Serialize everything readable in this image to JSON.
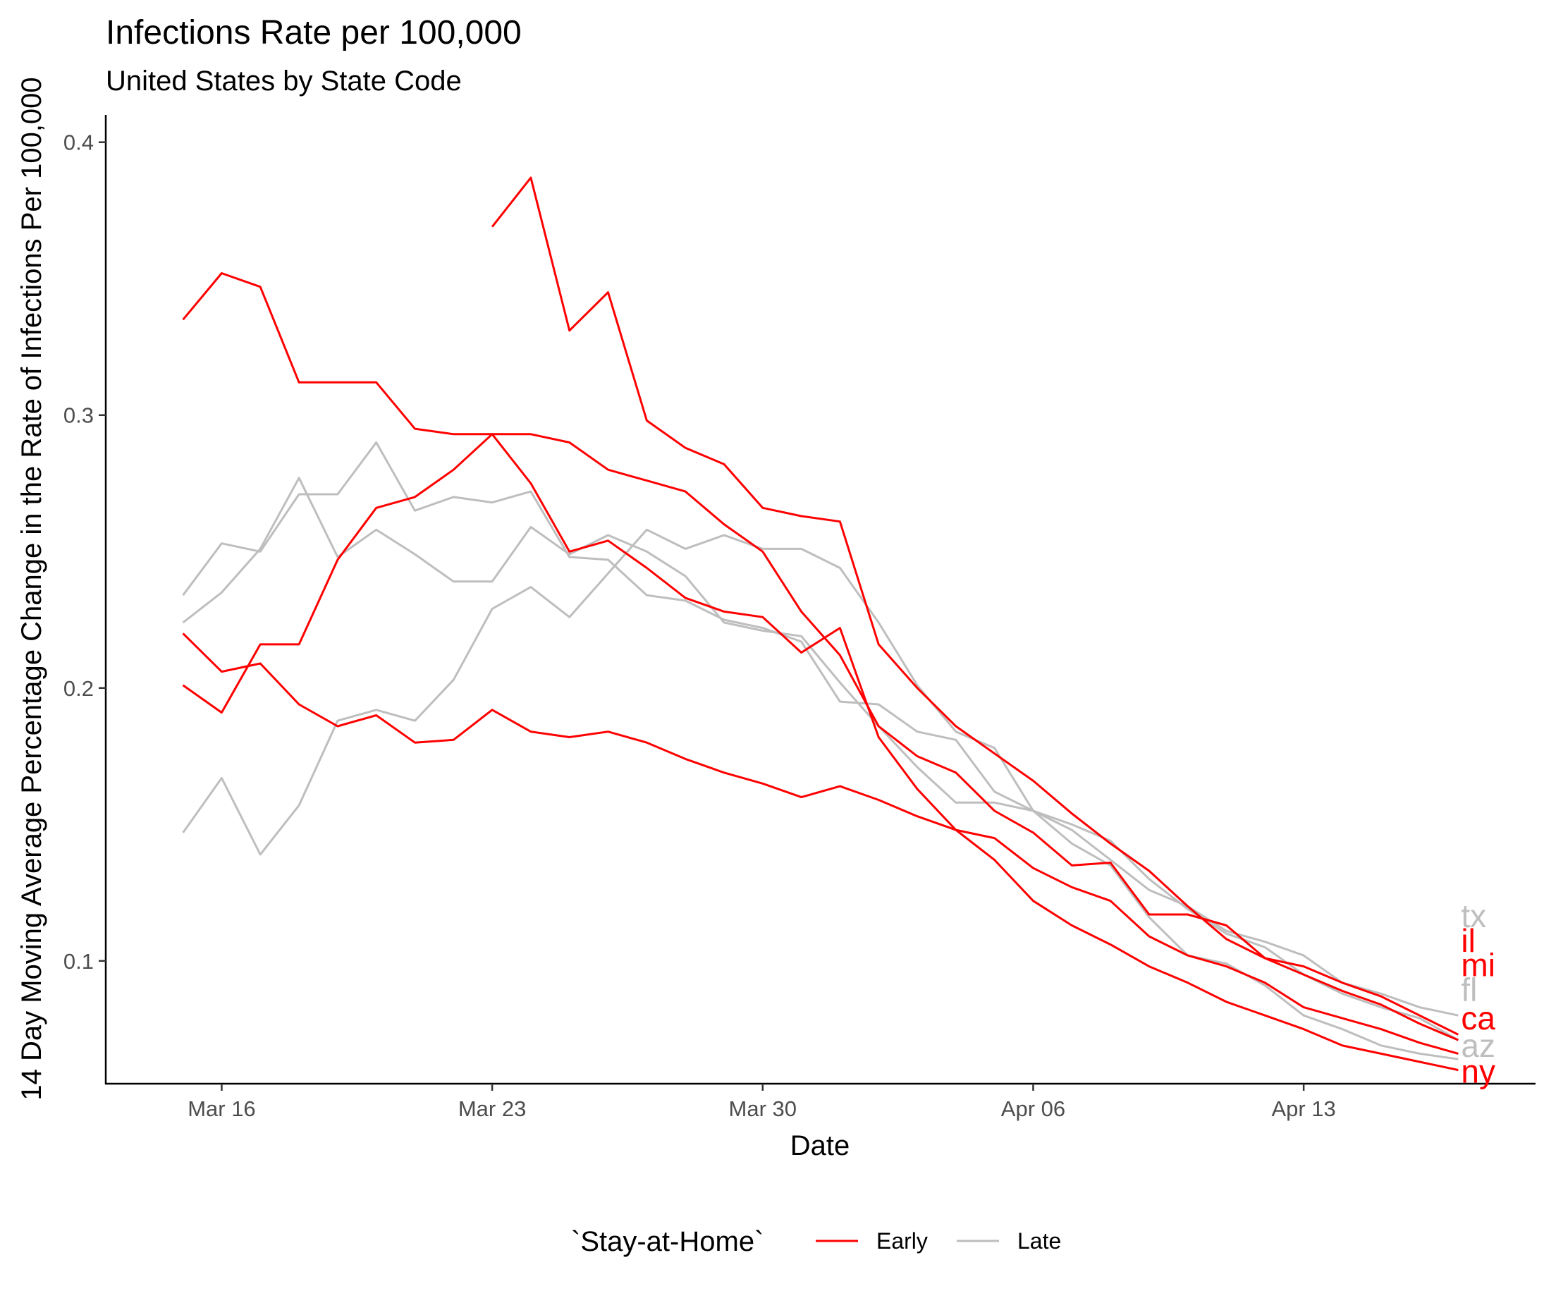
{
  "chart_data": {
    "type": "line",
    "title": "Infections Rate per 100,000",
    "subtitle": "United States by State Code",
    "xlabel": "Date",
    "ylabel": "14 Day Moving Average Percentage Change in the Rate of Infections Per 100,000",
    "xlim": [
      "2020-03-13",
      "2020-04-19"
    ],
    "ylim": [
      0.055,
      0.41
    ],
    "x_ticks": [
      {
        "value": "2020-03-16",
        "label": "Mar 16"
      },
      {
        "value": "2020-03-23",
        "label": "Mar 23"
      },
      {
        "value": "2020-03-30",
        "label": "Mar 30"
      },
      {
        "value": "2020-04-06",
        "label": "Apr 06"
      },
      {
        "value": "2020-04-13",
        "label": "Apr 13"
      }
    ],
    "y_ticks": [
      {
        "value": 0.1,
        "label": "0.1"
      },
      {
        "value": 0.2,
        "label": "0.2"
      },
      {
        "value": 0.3,
        "label": "0.3"
      },
      {
        "value": 0.4,
        "label": "0.4"
      }
    ],
    "grid": false,
    "legend": {
      "title": "`Stay-at-Home`",
      "position": "bottom",
      "entries": [
        {
          "label": "Early",
          "color": "#ff0000"
        },
        {
          "label": "Late",
          "color": "#bebebe"
        }
      ]
    },
    "colors": {
      "Early": "#ff0000",
      "Late": "#bebebe"
    },
    "end_labels": [
      {
        "text": "tx",
        "group": "Late",
        "y": 0.1165
      },
      {
        "text": "il",
        "group": "Early",
        "y": 0.1075
      },
      {
        "text": "mi",
        "group": "Early",
        "y": 0.0985
      },
      {
        "text": "fl",
        "group": "Late",
        "y": 0.0895
      },
      {
        "text": "ca",
        "group": "Early",
        "y": 0.079
      },
      {
        "text": "az",
        "group": "Late",
        "y": 0.069
      },
      {
        "text": "ny",
        "group": "Early",
        "y": 0.0595
      }
    ],
    "series": [
      {
        "group": "Early",
        "x": [
          "2020-03-23",
          "2020-03-24",
          "2020-03-25",
          "2020-03-26",
          "2020-03-27",
          "2020-03-28",
          "2020-03-29",
          "2020-03-30",
          "2020-03-31",
          "2020-04-01",
          "2020-04-02",
          "2020-04-03",
          "2020-04-04",
          "2020-04-05",
          "2020-04-06",
          "2020-04-07",
          "2020-04-08",
          "2020-04-09",
          "2020-04-10",
          "2020-04-11",
          "2020-04-12",
          "2020-04-13",
          "2020-04-14",
          "2020-04-15",
          "2020-04-16",
          "2020-04-17"
        ],
        "y": [
          0.369,
          0.387,
          0.331,
          0.345,
          0.298,
          0.288,
          0.282,
          0.266,
          0.263,
          0.261,
          0.216,
          0.2,
          0.186,
          0.176,
          0.166,
          0.154,
          0.143,
          0.133,
          0.12,
          0.108,
          0.101,
          0.098,
          0.092,
          0.087,
          0.08,
          0.073
        ]
      },
      {
        "group": "Early",
        "x": [
          "2020-03-15",
          "2020-03-16",
          "2020-03-17",
          "2020-03-18",
          "2020-03-19",
          "2020-03-20",
          "2020-03-21",
          "2020-03-22",
          "2020-03-23",
          "2020-03-24",
          "2020-03-25",
          "2020-03-26",
          "2020-03-27",
          "2020-03-28",
          "2020-03-29",
          "2020-03-30",
          "2020-03-31",
          "2020-04-01",
          "2020-04-02",
          "2020-04-03",
          "2020-04-04",
          "2020-04-05",
          "2020-04-06",
          "2020-04-07",
          "2020-04-08",
          "2020-04-09",
          "2020-04-10",
          "2020-04-11",
          "2020-04-12",
          "2020-04-13",
          "2020-04-14",
          "2020-04-15",
          "2020-04-16",
          "2020-04-17"
        ],
        "y": [
          0.335,
          0.352,
          0.347,
          0.312,
          0.312,
          0.312,
          0.295,
          0.293,
          0.293,
          0.293,
          0.29,
          0.28,
          0.276,
          0.272,
          0.26,
          0.25,
          0.228,
          0.212,
          0.186,
          0.175,
          0.169,
          0.155,
          0.147,
          0.135,
          0.136,
          0.117,
          0.117,
          0.113,
          0.101,
          0.095,
          0.089,
          0.084,
          0.077,
          0.071
        ]
      },
      {
        "group": "Early",
        "x": [
          "2020-03-15",
          "2020-03-16",
          "2020-03-17",
          "2020-03-18",
          "2020-03-19",
          "2020-03-20",
          "2020-03-21",
          "2020-03-22",
          "2020-03-23",
          "2020-03-24",
          "2020-03-25",
          "2020-03-26",
          "2020-03-27",
          "2020-03-28",
          "2020-03-29",
          "2020-03-30",
          "2020-03-31",
          "2020-04-01",
          "2020-04-02",
          "2020-04-03",
          "2020-04-04",
          "2020-04-05",
          "2020-04-06",
          "2020-04-07",
          "2020-04-08",
          "2020-04-09",
          "2020-04-10",
          "2020-04-11",
          "2020-04-12",
          "2020-04-13",
          "2020-04-14",
          "2020-04-15",
          "2020-04-16",
          "2020-04-17"
        ],
        "y": [
          0.201,
          0.191,
          0.216,
          0.216,
          0.247,
          0.266,
          0.27,
          0.28,
          0.293,
          0.275,
          0.25,
          0.254,
          0.244,
          0.233,
          0.228,
          0.226,
          0.213,
          0.222,
          0.182,
          0.163,
          0.148,
          0.137,
          0.122,
          0.113,
          0.106,
          0.098,
          0.092,
          0.085,
          0.08,
          0.075,
          0.069,
          0.066,
          0.063,
          0.06
        ]
      },
      {
        "group": "Early",
        "x": [
          "2020-03-15",
          "2020-03-16",
          "2020-03-17",
          "2020-03-18",
          "2020-03-19",
          "2020-03-20",
          "2020-03-21",
          "2020-03-22",
          "2020-03-23",
          "2020-03-24",
          "2020-03-25",
          "2020-03-26",
          "2020-03-27",
          "2020-03-28",
          "2020-03-29",
          "2020-03-30",
          "2020-03-31",
          "2020-04-01",
          "2020-04-02",
          "2020-04-03",
          "2020-04-04",
          "2020-04-05",
          "2020-04-06",
          "2020-04-07",
          "2020-04-08",
          "2020-04-09",
          "2020-04-10",
          "2020-04-11",
          "2020-04-12",
          "2020-04-13",
          "2020-04-14",
          "2020-04-15",
          "2020-04-16",
          "2020-04-17"
        ],
        "y": [
          0.22,
          0.206,
          0.209,
          0.194,
          0.186,
          0.19,
          0.18,
          0.181,
          0.192,
          0.184,
          0.182,
          0.184,
          0.18,
          0.174,
          0.169,
          0.165,
          0.16,
          0.164,
          0.159,
          0.153,
          0.148,
          0.145,
          0.134,
          0.127,
          0.122,
          0.109,
          0.102,
          0.098,
          0.092,
          0.083,
          0.079,
          0.075,
          0.07,
          0.066
        ]
      },
      {
        "group": "Late",
        "x": [
          "2020-03-15",
          "2020-03-16",
          "2020-03-17",
          "2020-03-18",
          "2020-03-19",
          "2020-03-20",
          "2020-03-21",
          "2020-03-22",
          "2020-03-23",
          "2020-03-24",
          "2020-03-25",
          "2020-03-26",
          "2020-03-27",
          "2020-03-28",
          "2020-03-29",
          "2020-03-30",
          "2020-03-31",
          "2020-04-01",
          "2020-04-02",
          "2020-04-03",
          "2020-04-04",
          "2020-04-05",
          "2020-04-06",
          "2020-04-07",
          "2020-04-08",
          "2020-04-09",
          "2020-04-10",
          "2020-04-11",
          "2020-04-12",
          "2020-04-13",
          "2020-04-14",
          "2020-04-15",
          "2020-04-16",
          "2020-04-17"
        ],
        "y": [
          0.234,
          0.253,
          0.25,
          0.271,
          0.271,
          0.29,
          0.265,
          0.27,
          0.268,
          0.272,
          0.248,
          0.247,
          0.234,
          0.232,
          0.225,
          0.222,
          0.217,
          0.195,
          0.194,
          0.184,
          0.181,
          0.162,
          0.155,
          0.148,
          0.137,
          0.126,
          0.12,
          0.111,
          0.107,
          0.102,
          0.092,
          0.088,
          0.083,
          0.08
        ]
      },
      {
        "group": "Late",
        "x": [
          "2020-03-15",
          "2020-03-16",
          "2020-03-17",
          "2020-03-18",
          "2020-03-19",
          "2020-03-20",
          "2020-03-21",
          "2020-03-22",
          "2020-03-23",
          "2020-03-24",
          "2020-03-25",
          "2020-03-26",
          "2020-03-27",
          "2020-03-28",
          "2020-03-29",
          "2020-03-30",
          "2020-03-31",
          "2020-04-01",
          "2020-04-02",
          "2020-04-03",
          "2020-04-04",
          "2020-04-05",
          "2020-04-06",
          "2020-04-07",
          "2020-04-08",
          "2020-04-09",
          "2020-04-10",
          "2020-04-11",
          "2020-04-12",
          "2020-04-13",
          "2020-04-14",
          "2020-04-15",
          "2020-04-16",
          "2020-04-17"
        ],
        "y": [
          0.224,
          0.235,
          0.251,
          0.277,
          0.248,
          0.258,
          0.249,
          0.239,
          0.239,
          0.259,
          0.249,
          0.256,
          0.25,
          0.241,
          0.224,
          0.221,
          0.219,
          0.202,
          0.186,
          0.171,
          0.158,
          0.158,
          0.155,
          0.15,
          0.144,
          0.13,
          0.119,
          0.11,
          0.105,
          0.095,
          0.088,
          0.083,
          0.079,
          0.071
        ]
      },
      {
        "group": "Late",
        "x": [
          "2020-03-15",
          "2020-03-16",
          "2020-03-17",
          "2020-03-18",
          "2020-03-19",
          "2020-03-20",
          "2020-03-21",
          "2020-03-22",
          "2020-03-23",
          "2020-03-24",
          "2020-03-25",
          "2020-03-26",
          "2020-03-27",
          "2020-03-28",
          "2020-03-29",
          "2020-03-30",
          "2020-03-31",
          "2020-04-01",
          "2020-04-02",
          "2020-04-03",
          "2020-04-04",
          "2020-04-05",
          "2020-04-06",
          "2020-04-07",
          "2020-04-08",
          "2020-04-09",
          "2020-04-10",
          "2020-04-11",
          "2020-04-12",
          "2020-04-13",
          "2020-04-14",
          "2020-04-15",
          "2020-04-16",
          "2020-04-17"
        ],
        "y": [
          0.147,
          0.167,
          0.139,
          0.157,
          0.188,
          0.192,
          0.188,
          0.203,
          0.229,
          0.237,
          0.226,
          0.242,
          0.258,
          0.251,
          0.256,
          0.251,
          0.251,
          0.244,
          0.224,
          0.201,
          0.184,
          0.178,
          0.155,
          0.143,
          0.135,
          0.116,
          0.102,
          0.099,
          0.091,
          0.08,
          0.075,
          0.069,
          0.066,
          0.064
        ]
      }
    ]
  }
}
